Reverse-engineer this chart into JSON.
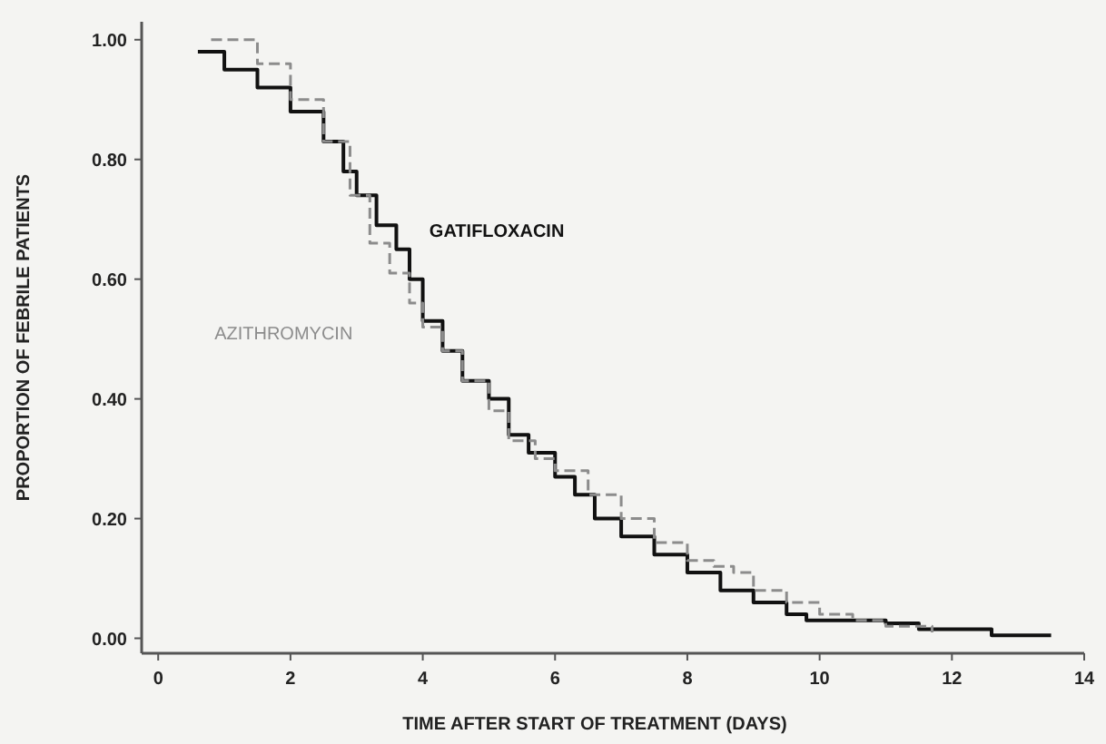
{
  "chart_data": {
    "type": "step",
    "xlabel": "TIME AFTER START OF TREATMENT (DAYS)",
    "ylabel": "PROPORTION OF FEBRILE PATIENTS",
    "xlim": [
      -0.25,
      14
    ],
    "xticks": [
      0,
      2,
      4,
      6,
      8,
      10,
      12,
      14
    ],
    "ylim": [
      -0.025,
      1.03
    ],
    "yticks": [
      {
        "value": 0,
        "label": "0.00"
      },
      {
        "value": 0.2,
        "label": "0.20"
      },
      {
        "value": 0.4,
        "label": "0.40"
      },
      {
        "value": 0.6,
        "label": "0.60"
      },
      {
        "value": 0.8,
        "label": "0.80"
      },
      {
        "value": 1,
        "label": "1.00"
      }
    ],
    "grid": false,
    "series": [
      {
        "name": "GATIFLOXACIN",
        "color": "#111111",
        "line_style": "solid",
        "x": [
          0.6,
          1.0,
          1.5,
          2.0,
          2.5,
          2.8,
          3.0,
          3.3,
          3.6,
          3.8,
          4.0,
          4.3,
          4.6,
          5.0,
          5.3,
          5.6,
          6.0,
          6.3,
          6.6,
          7.0,
          7.5,
          8.0,
          8.5,
          9.0,
          9.5,
          9.8,
          11.0,
          11.5,
          12.6,
          13.5
        ],
        "values": [
          0.98,
          0.95,
          0.92,
          0.88,
          0.83,
          0.78,
          0.74,
          0.69,
          0.65,
          0.6,
          0.53,
          0.48,
          0.43,
          0.4,
          0.34,
          0.31,
          0.27,
          0.24,
          0.2,
          0.17,
          0.14,
          0.11,
          0.08,
          0.06,
          0.04,
          0.03,
          0.025,
          0.015,
          0.005,
          0.005
        ]
      },
      {
        "name": "AZITHROMYCIN",
        "color": "#8c8c8c",
        "line_style": "dashed",
        "x": [
          0.8,
          1.5,
          2.0,
          2.5,
          2.9,
          3.2,
          3.5,
          3.8,
          4.0,
          4.3,
          4.6,
          5.0,
          5.3,
          5.7,
          6.0,
          6.5,
          7.0,
          7.5,
          8.0,
          8.4,
          8.7,
          9.0,
          9.5,
          10.0,
          10.5,
          11.0,
          11.7
        ],
        "values": [
          1.0,
          0.96,
          0.9,
          0.83,
          0.74,
          0.66,
          0.61,
          0.56,
          0.52,
          0.48,
          0.43,
          0.38,
          0.33,
          0.3,
          0.28,
          0.24,
          0.2,
          0.16,
          0.13,
          0.12,
          0.11,
          0.08,
          0.06,
          0.04,
          0.03,
          0.02,
          0.01
        ]
      }
    ]
  }
}
